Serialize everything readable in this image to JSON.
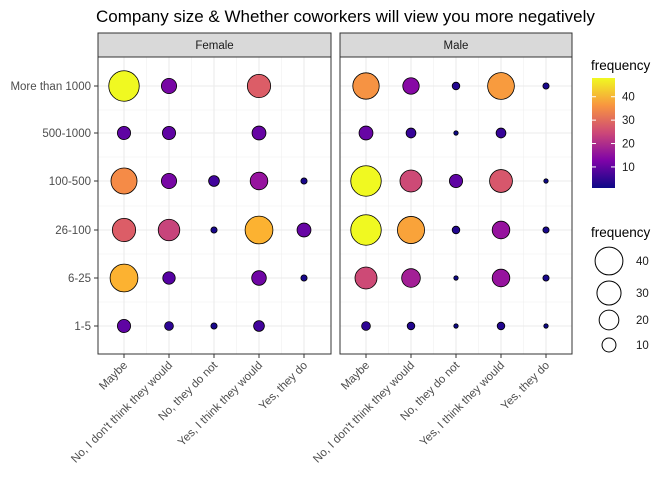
{
  "chart_data": {
    "type": "bubble",
    "title": "Company size & Whether coworkers will view you more negatively",
    "xlabel": "",
    "ylabel": "",
    "facets": [
      "Female",
      "Male"
    ],
    "x_categories": [
      "Maybe",
      "No, I don't think they would",
      "No, they do not",
      "Yes, I think they would",
      "Yes, they do"
    ],
    "y_categories": [
      "1-5",
      "6-25",
      "26-100",
      "100-500",
      "500-1000",
      "More than 1000"
    ],
    "grid": true,
    "color_legend": {
      "title": "frequency",
      "ticks": [
        10,
        20,
        30,
        40
      ],
      "range": [
        1,
        48
      ],
      "palette": "plasma"
    },
    "size_legend": {
      "title": "frequency",
      "ticks": [
        10,
        20,
        30,
        40
      ]
    },
    "legend_position": "right",
    "points": [
      {
        "facet": "Female",
        "x": "Maybe",
        "y": "More than 1000",
        "value": 48
      },
      {
        "facet": "Female",
        "x": "No, I don't think they would",
        "y": "More than 1000",
        "value": 12
      },
      {
        "facet": "Female",
        "x": "Yes, I think they would",
        "y": "More than 1000",
        "value": 28
      },
      {
        "facet": "Female",
        "x": "Maybe",
        "y": "500-1000",
        "value": 9
      },
      {
        "facet": "Female",
        "x": "No, I don't think they would",
        "y": "500-1000",
        "value": 9
      },
      {
        "facet": "Female",
        "x": "Yes, I think they would",
        "y": "500-1000",
        "value": 10
      },
      {
        "facet": "Female",
        "x": "Maybe",
        "y": "100-500",
        "value": 35
      },
      {
        "facet": "Female",
        "x": "No, I don't think they would",
        "y": "100-500",
        "value": 12
      },
      {
        "facet": "Female",
        "x": "No, they do not",
        "y": "100-500",
        "value": 6
      },
      {
        "facet": "Female",
        "x": "Yes, I think they would",
        "y": "100-500",
        "value": 16
      },
      {
        "facet": "Female",
        "x": "Yes, they do",
        "y": "100-500",
        "value": 2
      },
      {
        "facet": "Female",
        "x": "Maybe",
        "y": "26-100",
        "value": 28
      },
      {
        "facet": "Female",
        "x": "No, I don't think they would",
        "y": "26-100",
        "value": 24
      },
      {
        "facet": "Female",
        "x": "No, they do not",
        "y": "26-100",
        "value": 2
      },
      {
        "facet": "Female",
        "x": "Yes, I think they would",
        "y": "26-100",
        "value": 40
      },
      {
        "facet": "Female",
        "x": "Yes, they do",
        "y": "26-100",
        "value": 10
      },
      {
        "facet": "Female",
        "x": "Maybe",
        "y": "6-25",
        "value": 40
      },
      {
        "facet": "Female",
        "x": "No, I don't think they would",
        "y": "6-25",
        "value": 8
      },
      {
        "facet": "Female",
        "x": "Yes, I think they would",
        "y": "6-25",
        "value": 11
      },
      {
        "facet": "Female",
        "x": "Yes, they do",
        "y": "6-25",
        "value": 2
      },
      {
        "facet": "Female",
        "x": "Maybe",
        "y": "1-5",
        "value": 9
      },
      {
        "facet": "Female",
        "x": "No, I don't think they would",
        "y": "1-5",
        "value": 4
      },
      {
        "facet": "Female",
        "x": "No, they do not",
        "y": "1-5",
        "value": 2
      },
      {
        "facet": "Female",
        "x": "Yes, I think they would",
        "y": "1-5",
        "value": 6
      },
      {
        "facet": "Male",
        "x": "Maybe",
        "y": "More than 1000",
        "value": 36
      },
      {
        "facet": "Male",
        "x": "No, I don't think they would",
        "y": "More than 1000",
        "value": 14
      },
      {
        "facet": "Male",
        "x": "No, they do not",
        "y": "More than 1000",
        "value": 3
      },
      {
        "facet": "Male",
        "x": "Yes, I think they would",
        "y": "More than 1000",
        "value": 37
      },
      {
        "facet": "Male",
        "x": "Yes, they do",
        "y": "More than 1000",
        "value": 2
      },
      {
        "facet": "Male",
        "x": "Maybe",
        "y": "500-1000",
        "value": 10
      },
      {
        "facet": "Male",
        "x": "No, I don't think they would",
        "y": "500-1000",
        "value": 5
      },
      {
        "facet": "Male",
        "x": "No, they do not",
        "y": "500-1000",
        "value": 1
      },
      {
        "facet": "Male",
        "x": "Yes, I think they would",
        "y": "500-1000",
        "value": 5
      },
      {
        "facet": "Male",
        "x": "Maybe",
        "y": "100-500",
        "value": 48
      },
      {
        "facet": "Male",
        "x": "No, I don't think they would",
        "y": "100-500",
        "value": 25
      },
      {
        "facet": "Male",
        "x": "No, they do not",
        "y": "100-500",
        "value": 9
      },
      {
        "facet": "Male",
        "x": "Yes, I think they would",
        "y": "100-500",
        "value": 27
      },
      {
        "facet": "Male",
        "x": "Yes, they do",
        "y": "100-500",
        "value": 1
      },
      {
        "facet": "Male",
        "x": "Maybe",
        "y": "26-100",
        "value": 48
      },
      {
        "facet": "Male",
        "x": "No, I don't think they would",
        "y": "26-100",
        "value": 38
      },
      {
        "facet": "Male",
        "x": "No, they do not",
        "y": "26-100",
        "value": 3
      },
      {
        "facet": "Male",
        "x": "Yes, I think they would",
        "y": "26-100",
        "value": 16
      },
      {
        "facet": "Male",
        "x": "Yes, they do",
        "y": "26-100",
        "value": 2
      },
      {
        "facet": "Male",
        "x": "Maybe",
        "y": "6-25",
        "value": 25
      },
      {
        "facet": "Male",
        "x": "No, I don't think they would",
        "y": "6-25",
        "value": 18
      },
      {
        "facet": "Male",
        "x": "No, they do not",
        "y": "6-25",
        "value": 1
      },
      {
        "facet": "Male",
        "x": "Yes, I think they would",
        "y": "6-25",
        "value": 16
      },
      {
        "facet": "Male",
        "x": "Yes, they do",
        "y": "6-25",
        "value": 2
      },
      {
        "facet": "Male",
        "x": "Maybe",
        "y": "1-5",
        "value": 4
      },
      {
        "facet": "Male",
        "x": "No, I don't think they would",
        "y": "1-5",
        "value": 3
      },
      {
        "facet": "Male",
        "x": "No, they do not",
        "y": "1-5",
        "value": 1
      },
      {
        "facet": "Male",
        "x": "Yes, I think they would",
        "y": "1-5",
        "value": 3
      },
      {
        "facet": "Male",
        "x": "Yes, they do",
        "y": "1-5",
        "value": 1
      }
    ]
  }
}
